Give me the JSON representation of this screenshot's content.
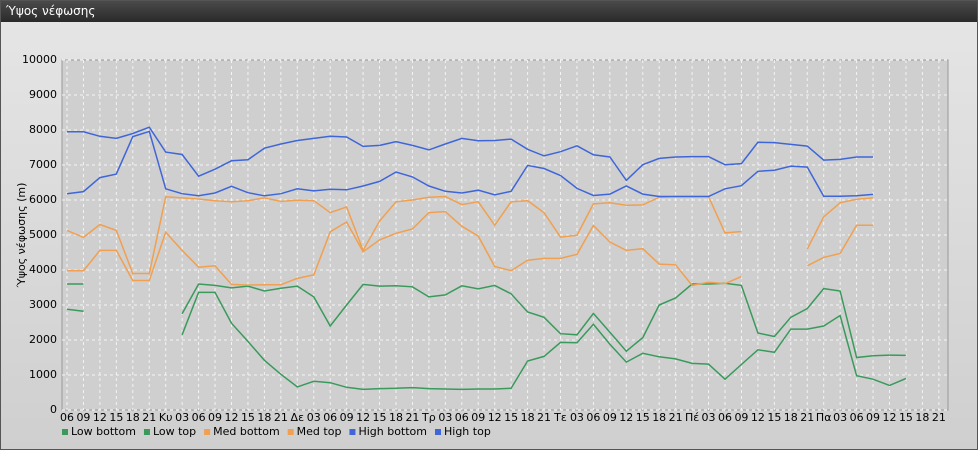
{
  "chart_data": {
    "type": "line",
    "title": "Ύψος νέφωσης",
    "yaxis_label": "Ύψος νέφωσης (m)",
    "categories": [
      "06",
      "09",
      "12",
      "15",
      "18",
      "21",
      "Κυ",
      "03",
      "06",
      "09",
      "12",
      "15",
      "18",
      "21",
      "Δε",
      "03",
      "06",
      "09",
      "12",
      "15",
      "18",
      "21",
      "Τρ",
      "03",
      "06",
      "09",
      "12",
      "15",
      "18",
      "21",
      "Τε",
      "03",
      "06",
      "09",
      "12",
      "15",
      "18",
      "21",
      "Πέ",
      "03",
      "06",
      "09",
      "12",
      "15",
      "18",
      "21",
      "Πα",
      "03",
      "06",
      "09",
      "12",
      "15",
      "18",
      "21"
    ],
    "ylim": [
      0,
      10000
    ],
    "yticks": [
      0,
      1000,
      2000,
      3000,
      4000,
      5000,
      6000,
      7000,
      8000,
      9000,
      10000
    ],
    "grid": true,
    "series": [
      {
        "name": "Low bottom",
        "color": "#3a9a5c",
        "values": [
          2880,
          2820,
          null,
          null,
          null,
          null,
          null,
          2150,
          3360,
          3360,
          2480,
          1960,
          1420,
          1020,
          660,
          820,
          780,
          650,
          590,
          610,
          620,
          640,
          610,
          600,
          590,
          600,
          600,
          620,
          1400,
          1530,
          1930,
          1920,
          2450,
          1880,
          1370,
          1620,
          1520,
          1460,
          1330,
          1310,
          880,
          1300,
          1720,
          1650,
          2310,
          2310,
          2400,
          2700,
          980,
          880,
          700,
          900,
          null,
          null
        ]
      },
      {
        "name": "Low top",
        "color": "#3a9a5c",
        "values": [
          3600,
          3600,
          null,
          null,
          null,
          null,
          null,
          2750,
          3600,
          3560,
          3490,
          3540,
          3400,
          3480,
          3540,
          3230,
          2400,
          3000,
          3590,
          3540,
          3550,
          3520,
          3230,
          3290,
          3550,
          3460,
          3560,
          3320,
          2800,
          2650,
          2180,
          2150,
          2760,
          2220,
          1680,
          2070,
          3000,
          3200,
          3600,
          3600,
          3620,
          3560,
          2200,
          2100,
          2650,
          2900,
          3470,
          3400,
          1500,
          1550,
          1570,
          1560,
          null,
          null
        ]
      },
      {
        "name": "Med bottom",
        "color": "#f0a050",
        "values": [
          3980,
          3980,
          4560,
          4560,
          3700,
          3700,
          5080,
          4560,
          4080,
          4120,
          3590,
          3570,
          3580,
          3580,
          3760,
          3860,
          5090,
          5370,
          4520,
          4860,
          5050,
          5170,
          5640,
          5670,
          5250,
          4970,
          4100,
          3980,
          4280,
          4330,
          4330,
          4450,
          5270,
          4800,
          4560,
          4610,
          4170,
          4150,
          3560,
          3650,
          3610,
          3810,
          null,
          null,
          null,
          4120,
          4360,
          4470,
          5280,
          5280,
          null,
          null,
          null,
          null
        ]
      },
      {
        "name": "Med top",
        "color": "#f0a050",
        "values": [
          5130,
          4930,
          5300,
          5130,
          3900,
          3900,
          6090,
          6060,
          6030,
          5980,
          5950,
          5980,
          6060,
          5960,
          5990,
          5980,
          5640,
          5800,
          4560,
          5400,
          5950,
          6000,
          6080,
          6100,
          5870,
          5950,
          5280,
          5950,
          5980,
          5640,
          4940,
          4990,
          5890,
          5920,
          5850,
          5860,
          6080,
          6100,
          6100,
          6100,
          5060,
          5100,
          null,
          null,
          null,
          4600,
          5520,
          5920,
          6020,
          6060,
          null,
          null,
          null,
          null
        ]
      },
      {
        "name": "High bottom",
        "color": "#3f66d8",
        "values": [
          6180,
          6240,
          6640,
          6740,
          7810,
          7960,
          6320,
          6180,
          6120,
          6200,
          6390,
          6210,
          6120,
          6180,
          6320,
          6260,
          6310,
          6290,
          6400,
          6530,
          6800,
          6660,
          6400,
          6250,
          6200,
          6280,
          6150,
          6250,
          6990,
          6900,
          6700,
          6330,
          6130,
          6170,
          6400,
          6170,
          6100,
          6100,
          6100,
          6100,
          6320,
          6410,
          6820,
          6850,
          6970,
          6940,
          6110,
          6110,
          6120,
          6160,
          null,
          null,
          null,
          null
        ]
      },
      {
        "name": "High top",
        "color": "#3f66d8",
        "values": [
          7950,
          7950,
          7820,
          7760,
          7900,
          8080,
          7370,
          7300,
          6680,
          6880,
          7120,
          7150,
          7480,
          7600,
          7700,
          7760,
          7820,
          7800,
          7530,
          7560,
          7670,
          7560,
          7430,
          7600,
          7760,
          7690,
          7700,
          7740,
          7450,
          7260,
          7380,
          7550,
          7290,
          7230,
          6560,
          7010,
          7190,
          7230,
          7240,
          7240,
          7010,
          7040,
          7650,
          7640,
          7590,
          7540,
          7140,
          7160,
          7230,
          7230,
          null,
          null,
          null,
          null
        ]
      }
    ]
  }
}
